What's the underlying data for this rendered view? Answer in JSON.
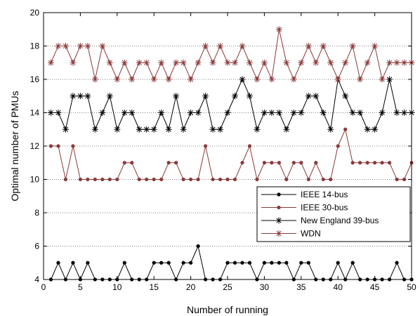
{
  "chart_data": {
    "type": "line",
    "xlabel": "Number of running",
    "ylabel": "Optimal number of PMUs",
    "xlim": [
      0,
      50
    ],
    "ylim": [
      4,
      20
    ],
    "xticks": [
      0,
      5,
      10,
      15,
      20,
      25,
      30,
      35,
      40,
      45,
      50
    ],
    "yticks": [
      4,
      6,
      8,
      10,
      12,
      14,
      16,
      18,
      20
    ],
    "grid": "horizontal dotted",
    "legend_position": "bottom-right",
    "x": [
      1,
      2,
      3,
      4,
      5,
      6,
      7,
      8,
      9,
      10,
      11,
      12,
      13,
      14,
      15,
      16,
      17,
      18,
      19,
      20,
      21,
      22,
      23,
      24,
      25,
      26,
      27,
      28,
      29,
      30,
      31,
      32,
      33,
      34,
      35,
      36,
      37,
      38,
      39,
      40,
      41,
      42,
      43,
      44,
      45,
      46,
      47,
      48,
      49,
      50
    ],
    "series": [
      {
        "name": "IEEE 14-bus",
        "color": "#000000",
        "marker": "dot",
        "values": [
          4,
          5,
          4,
          5,
          4,
          5,
          4,
          4,
          4,
          4,
          5,
          4,
          4,
          4,
          5,
          5,
          5,
          4,
          5,
          5,
          6,
          4,
          4,
          4,
          5,
          5,
          5,
          5,
          4,
          5,
          5,
          5,
          5,
          4,
          5,
          5,
          4,
          4,
          4,
          5,
          4,
          5,
          4,
          4,
          4,
          4,
          4,
          5,
          4,
          4
        ]
      },
      {
        "name": "IEEE 30-bus",
        "color": "#8b3a3a",
        "marker": "dot",
        "values": [
          12,
          12,
          10,
          12,
          10,
          10,
          10,
          10,
          10,
          10,
          11,
          11,
          10,
          10,
          10,
          10,
          11,
          11,
          10,
          10,
          10,
          12,
          10,
          10,
          10,
          10,
          11,
          12,
          10,
          11,
          11,
          11,
          10,
          11,
          11,
          10,
          11,
          10,
          10,
          12,
          13,
          11,
          11,
          11,
          11,
          11,
          11,
          10,
          10,
          11
        ]
      },
      {
        "name": "New England 39-bus",
        "color": "#000000",
        "marker": "star",
        "values": [
          14,
          14,
          13,
          15,
          15,
          15,
          13,
          14,
          15,
          13,
          14,
          14,
          13,
          13,
          13,
          14,
          13,
          15,
          13,
          14,
          14,
          15,
          13,
          13,
          14,
          15,
          16,
          15,
          13,
          14,
          14,
          14,
          13,
          14,
          14,
          15,
          15,
          14,
          13,
          16,
          15,
          14,
          14,
          13,
          13,
          14,
          16,
          14,
          14,
          14
        ]
      },
      {
        "name": "WDN",
        "color": "#8b3a3a",
        "marker": "star",
        "values": [
          17,
          18,
          18,
          17,
          18,
          18,
          16,
          18,
          17,
          16,
          17,
          16,
          17,
          17,
          16,
          17,
          16,
          17,
          17,
          16,
          17,
          18,
          17,
          18,
          17,
          17,
          18,
          17,
          16,
          17,
          16,
          19,
          17,
          16,
          17,
          18,
          17,
          18,
          17,
          16,
          17,
          18,
          16,
          17,
          18,
          16,
          17,
          17,
          17,
          17
        ]
      }
    ]
  }
}
